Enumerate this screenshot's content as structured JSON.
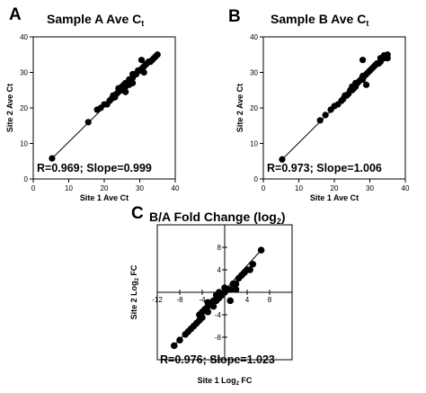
{
  "chart_data": [
    {
      "panel_label": "A",
      "type": "scatter",
      "title_main": "Sample A Ave C",
      "title_sub": "t",
      "xlabel": "Site 1 Ave Ct",
      "ylabel": "Site 2 Ave Ct",
      "xlim": [
        0,
        40
      ],
      "ylim": [
        0,
        40
      ],
      "xticks": [
        "0",
        "10",
        "20",
        "30",
        "40"
      ],
      "yticks": [
        "0",
        "10",
        "20",
        "30",
        "40"
      ],
      "annotation": "R=0.969; Slope=0.999",
      "fit_line": {
        "x1": 5.3,
        "y1": 5.8,
        "x2": 35,
        "y2": 35
      },
      "points": {
        "x": [
          5.3,
          15.5,
          18,
          19,
          20,
          20.8,
          21.5,
          22,
          22.5,
          23,
          23.5,
          24,
          24,
          24.5,
          25,
          25,
          25.5,
          26,
          26,
          26.5,
          27,
          27,
          27.5,
          28,
          28,
          28.5,
          29,
          29.5,
          30,
          30.5,
          31,
          31.5,
          32,
          32.5,
          33,
          33.5,
          34,
          34.5,
          35,
          26,
          28,
          30.5,
          31.2
        ],
        "y": [
          5.8,
          16,
          19.5,
          20,
          21,
          21,
          22,
          22.5,
          23.5,
          23,
          24,
          24.5,
          25.5,
          25.5,
          25,
          26,
          26.5,
          26,
          27,
          27,
          26.5,
          28,
          28,
          28.5,
          29.5,
          29.5,
          29.5,
          30.5,
          30.5,
          31,
          31.5,
          32,
          32.5,
          33,
          33,
          33.5,
          34,
          34.5,
          35,
          24.5,
          27,
          33.5,
          30
        ]
      }
    },
    {
      "panel_label": "B",
      "type": "scatter",
      "title_main": "Sample B Ave C",
      "title_sub": "t",
      "xlabel": "Site 1 Ave Ct",
      "ylabel": "Site 2 Ave Ct",
      "xlim": [
        0,
        40
      ],
      "ylim": [
        0,
        40
      ],
      "xticks": [
        "0",
        "10",
        "20",
        "30",
        "40"
      ],
      "yticks": [
        "0",
        "10",
        "20",
        "30",
        "40"
      ],
      "annotation": "R=0.973; Slope=1.006",
      "fit_line": {
        "x1": 5.3,
        "y1": 5.5,
        "x2": 35,
        "y2": 35
      },
      "points": {
        "x": [
          5.3,
          16,
          17.5,
          19,
          20,
          21,
          22,
          22.5,
          23,
          23.5,
          24,
          24.5,
          25,
          25,
          25.5,
          26,
          26,
          26.5,
          27,
          27.5,
          28,
          28,
          28.5,
          29,
          29.5,
          30,
          30.5,
          31,
          31.5,
          32,
          32.5,
          33,
          33,
          33.5,
          34,
          34,
          34.5,
          35,
          35,
          28,
          29
        ],
        "y": [
          5.5,
          16.5,
          18,
          19.5,
          20.5,
          21,
          22,
          22.5,
          23.5,
          23.5,
          24,
          25,
          25,
          26,
          25.5,
          26,
          27,
          27,
          27.5,
          28,
          28,
          29,
          29,
          29.5,
          30,
          30.5,
          31,
          31.5,
          32,
          32.5,
          32.5,
          33,
          34,
          34,
          34,
          34.8,
          34.5,
          35,
          34,
          33.5,
          26.5
        ]
      }
    },
    {
      "panel_label": "C",
      "type": "scatter",
      "title_main": "B/A Fold Change (log",
      "title_sub": "2",
      "title_end": ")",
      "xlabel_main": "Site 1 Log",
      "xlabel_sub": "2",
      "xlabel_end": " FC",
      "ylabel_main": "Site 2 Log",
      "ylabel_sub": "2",
      "ylabel_end": " FC",
      "xlim": [
        -12,
        12
      ],
      "ylim": [
        -12,
        12
      ],
      "xticks": [
        "-12",
        "-8",
        "-4",
        "4",
        "8"
      ],
      "yticks": [
        "-12",
        "-8",
        "-4",
        "4",
        "8"
      ],
      "annotation": "R=0.976; Slope=1.023",
      "fit_line": {
        "x1": -9,
        "y1": -9.5,
        "x2": 6.5,
        "y2": 7.5
      },
      "points": {
        "x": [
          -9,
          -8,
          -7,
          -6.5,
          -6,
          -5.5,
          -5,
          -4.5,
          -4.5,
          -4,
          -4,
          -3.5,
          -3,
          -3,
          -2.5,
          -2,
          -2,
          -1.5,
          -1,
          -1,
          -0.5,
          0,
          0,
          0.5,
          1,
          1.5,
          2,
          2.5,
          3,
          3.5,
          4,
          4.5,
          5,
          6.5,
          1,
          2,
          -1.5,
          -3
        ],
        "y": [
          -9.5,
          -8.5,
          -7.5,
          -7,
          -6.5,
          -6,
          -5.5,
          -5,
          -4,
          -4.5,
          -3.5,
          -3,
          -2.5,
          -3.5,
          -2,
          -1.5,
          -2.5,
          -1.5,
          -1,
          0,
          -0.5,
          0,
          0.8,
          0.5,
          0.5,
          1.5,
          1.5,
          2.5,
          3,
          3.5,
          4,
          4,
          5,
          7.5,
          -1.5,
          0.5,
          -0.5,
          -1.8
        ]
      }
    }
  ]
}
